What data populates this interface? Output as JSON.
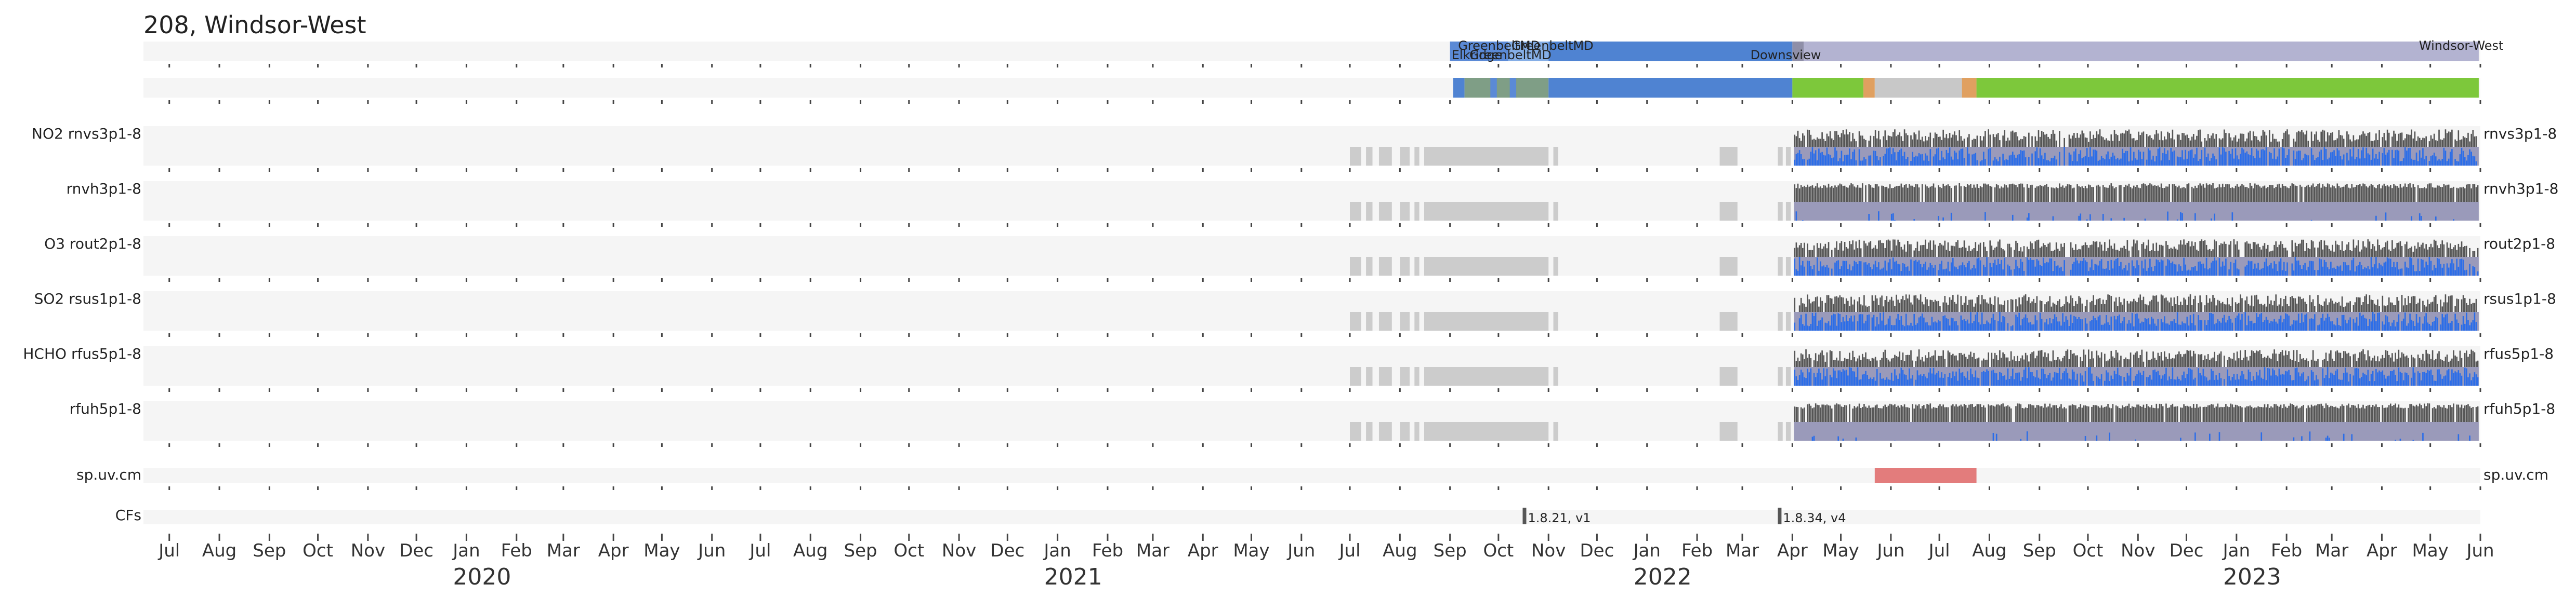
{
  "chart_data": {
    "type": "timeline",
    "title": "208, Windsor-West",
    "x_range": [
      "2019-06-15",
      "2023-06-01"
    ],
    "x_ticks": [
      {
        "date": "2019-07-01",
        "label": "Jul"
      },
      {
        "date": "2019-08-01",
        "label": "Aug"
      },
      {
        "date": "2019-09-01",
        "label": "Sep"
      },
      {
        "date": "2019-10-01",
        "label": "Oct"
      },
      {
        "date": "2019-11-01",
        "label": "Nov"
      },
      {
        "date": "2019-12-01",
        "label": "Dec"
      },
      {
        "date": "2020-01-01",
        "label": "Jan"
      },
      {
        "date": "2020-02-01",
        "label": "Feb"
      },
      {
        "date": "2020-03-01",
        "label": "Mar"
      },
      {
        "date": "2020-04-01",
        "label": "Apr"
      },
      {
        "date": "2020-05-01",
        "label": "May"
      },
      {
        "date": "2020-06-01",
        "label": "Jun"
      },
      {
        "date": "2020-07-01",
        "label": "Jul"
      },
      {
        "date": "2020-08-01",
        "label": "Aug"
      },
      {
        "date": "2020-09-01",
        "label": "Sep"
      },
      {
        "date": "2020-10-01",
        "label": "Oct"
      },
      {
        "date": "2020-11-01",
        "label": "Nov"
      },
      {
        "date": "2020-12-01",
        "label": "Dec"
      },
      {
        "date": "2021-01-01",
        "label": "Jan"
      },
      {
        "date": "2021-02-01",
        "label": "Feb"
      },
      {
        "date": "2021-03-01",
        "label": "Mar"
      },
      {
        "date": "2021-04-01",
        "label": "Apr"
      },
      {
        "date": "2021-05-01",
        "label": "May"
      },
      {
        "date": "2021-06-01",
        "label": "Jun"
      },
      {
        "date": "2021-07-01",
        "label": "Jul"
      },
      {
        "date": "2021-08-01",
        "label": "Aug"
      },
      {
        "date": "2021-09-01",
        "label": "Sep"
      },
      {
        "date": "2021-10-01",
        "label": "Oct"
      },
      {
        "date": "2021-11-01",
        "label": "Nov"
      },
      {
        "date": "2021-12-01",
        "label": "Dec"
      },
      {
        "date": "2022-01-01",
        "label": "Jan"
      },
      {
        "date": "2022-02-01",
        "label": "Feb"
      },
      {
        "date": "2022-03-01",
        "label": "Mar"
      },
      {
        "date": "2022-04-01",
        "label": "Apr"
      },
      {
        "date": "2022-05-01",
        "label": "May"
      },
      {
        "date": "2022-06-01",
        "label": "Jun"
      },
      {
        "date": "2022-07-01",
        "label": "Jul"
      },
      {
        "date": "2022-08-01",
        "label": "Aug"
      },
      {
        "date": "2022-09-01",
        "label": "Sep"
      },
      {
        "date": "2022-10-01",
        "label": "Oct"
      },
      {
        "date": "2022-11-01",
        "label": "Nov"
      },
      {
        "date": "2022-12-01",
        "label": "Dec"
      },
      {
        "date": "2023-01-01",
        "label": "Jan"
      },
      {
        "date": "2023-02-01",
        "label": "Feb"
      },
      {
        "date": "2023-03-01",
        "label": "Mar"
      },
      {
        "date": "2023-04-01",
        "label": "Apr"
      },
      {
        "date": "2023-05-01",
        "label": "May"
      },
      {
        "date": "2023-06-01",
        "label": "Jun"
      }
    ],
    "year_labels": [
      {
        "date": "2020-01-01",
        "label": "2020"
      },
      {
        "date": "2021-01-01",
        "label": "2021"
      },
      {
        "date": "2022-01-01",
        "label": "2022"
      },
      {
        "date": "2023-01-01",
        "label": "2023"
      }
    ],
    "location_bar": {
      "segments": [
        {
          "start": "2021-09-01",
          "end": "2021-10-07",
          "color": "#5b8ad6"
        },
        {
          "start": "2021-10-07",
          "end": "2021-11-01",
          "color": "#85aee6"
        },
        {
          "start": "2021-11-01",
          "end": "2022-04-01",
          "color": "#4f83d2"
        },
        {
          "start": "2022-04-01",
          "end": "2022-04-08",
          "color": "#8f8fa8"
        },
        {
          "start": "2022-04-08",
          "end": "2023-05-31",
          "color": "#b3b3d1"
        }
      ],
      "labels": [
        {
          "date": "2021-09-02",
          "text": "Elkridge",
          "row": 2
        },
        {
          "date": "2021-09-06",
          "text": "GreenbeltMD",
          "row": 1
        },
        {
          "date": "2021-09-13",
          "text": "GreenbeltMD",
          "row": 2
        },
        {
          "date": "2021-10-09",
          "text": "GreenbeltMD",
          "row": 1
        },
        {
          "date": "2022-03-06",
          "text": "Downsview",
          "row": 2
        },
        {
          "date": "2023-04-24",
          "text": "Windsor-West",
          "row": 1
        }
      ]
    },
    "status_bar": [
      {
        "start": "2021-09-03",
        "end": "2021-09-10",
        "color": "#4f83d2"
      },
      {
        "start": "2021-09-10",
        "end": "2021-11-01",
        "color": "#7f9e86"
      },
      {
        "start": "2021-09-26",
        "end": "2021-09-30",
        "color": "#5b8ad6"
      },
      {
        "start": "2021-10-08",
        "end": "2021-10-12",
        "color": "#5b8ad6"
      },
      {
        "start": "2021-11-01",
        "end": "2022-04-01",
        "color": "#4f83d2"
      },
      {
        "start": "2022-04-01",
        "end": "2022-05-15",
        "color": "#7dc83b"
      },
      {
        "start": "2022-05-15",
        "end": "2022-05-22",
        "color": "#e0a060"
      },
      {
        "start": "2022-05-22",
        "end": "2022-07-15",
        "color": "#c8c8c8"
      },
      {
        "start": "2022-07-15",
        "end": "2022-07-24",
        "color": "#e0a060"
      },
      {
        "start": "2022-07-24",
        "end": "2023-05-31",
        "color": "#7dc83b"
      }
    ],
    "product_rows": [
      {
        "left_label": "NO2  rnvs3p1-8",
        "right_label": "rnvs3p1-8",
        "style": "dense"
      },
      {
        "left_label": "rnvh3p1-8",
        "right_label": "rnvh3p1-8",
        "style": "smooth"
      },
      {
        "left_label": "O3  rout2p1-8",
        "right_label": "rout2p1-8",
        "style": "dense"
      },
      {
        "left_label": "SO2  rsus1p1-8",
        "right_label": "rsus1p1-8",
        "style": "dense"
      },
      {
        "left_label": "HCHO  rfus5p1-8",
        "right_label": "rfus5p1-8",
        "style": "dense"
      },
      {
        "left_label": "rfuh5p1-8",
        "right_label": "rfuh5p1-8",
        "style": "smooth"
      }
    ],
    "early_gray_blocks": [
      {
        "start": "2021-07-01",
        "end": "2021-07-08"
      },
      {
        "start": "2021-07-11",
        "end": "2021-07-15"
      },
      {
        "start": "2021-07-19",
        "end": "2021-07-27"
      },
      {
        "start": "2021-08-01",
        "end": "2021-08-07"
      },
      {
        "start": "2021-08-10",
        "end": "2021-08-13"
      },
      {
        "start": "2021-08-16",
        "end": "2021-11-01"
      },
      {
        "start": "2021-11-04",
        "end": "2021-11-07"
      },
      {
        "start": "2022-02-15",
        "end": "2022-02-26"
      },
      {
        "start": "2022-03-23",
        "end": "2022-03-26"
      },
      {
        "start": "2022-03-28",
        "end": "2022-03-31"
      }
    ],
    "data_period": {
      "start": "2022-04-02",
      "end": "2023-05-31"
    },
    "sp_uv_cm": {
      "left_label": "sp.uv.cm",
      "right_label": "sp.uv.cm",
      "segments": [
        {
          "start": "2022-05-22",
          "end": "2022-07-24",
          "color": "#e37c7c"
        }
      ]
    },
    "cfs": {
      "label": "CFs",
      "markers": [
        {
          "date": "2021-10-16",
          "text": "1.8.21, v1"
        },
        {
          "date": "2022-03-23",
          "text": "1.8.34, v4"
        }
      ]
    },
    "colors": {
      "track_bg": "#f5f5f5",
      "tick": "#444444",
      "gray_fill": "#cccccc",
      "bar_dark": "#555555",
      "bar_blue": "#2b6de8",
      "lower_band": "#9a9aba"
    }
  }
}
